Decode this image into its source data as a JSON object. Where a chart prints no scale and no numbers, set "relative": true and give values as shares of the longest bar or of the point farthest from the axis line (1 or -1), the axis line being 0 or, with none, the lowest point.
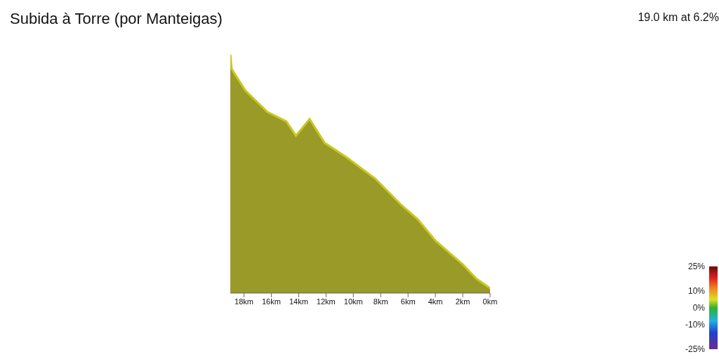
{
  "chart_data": {
    "type": "area",
    "title": "Subida à Torre (por Manteigas)",
    "subtitle": "19.0 km at 6.2%",
    "relative": true,
    "x": [
      0,
      1,
      2,
      3,
      4,
      5.3,
      6.5,
      8.4,
      10.5,
      12.1,
      13.2,
      14.2,
      14.9,
      16.3,
      17.9,
      18.9,
      19
    ],
    "series": [
      {
        "color": "#9a9a28",
        "values": [
          0.02,
          0.06,
          0.12,
          0.17,
          0.22,
          0.31,
          0.37,
          0.48,
          0.57,
          0.63,
          0.73,
          0.66,
          0.72,
          0.76,
          0.85,
          0.94,
          1
        ]
      }
    ],
    "xlim": [
      19,
      0
    ],
    "xticks": [
      {
        "value": 0,
        "label": "0km"
      },
      {
        "value": 2,
        "label": "2km"
      },
      {
        "value": 4,
        "label": "4km"
      },
      {
        "value": 6,
        "label": "6km"
      },
      {
        "value": 8,
        "label": "8km"
      },
      {
        "value": 10,
        "label": "10km"
      },
      {
        "value": 12,
        "label": "12km"
      },
      {
        "value": 14,
        "label": "14km"
      },
      {
        "value": 16,
        "label": "16km"
      },
      {
        "value": 18,
        "label": "18km"
      }
    ],
    "clim": [
      -25,
      25
    ],
    "cticks": [
      {
        "value": 25,
        "label": "25%"
      },
      {
        "value": 10,
        "label": "10%"
      },
      {
        "value": 0,
        "label": "0%"
      },
      {
        "value": -10,
        "label": "-10%"
      },
      {
        "value": -25,
        "label": "-25%"
      }
    ],
    "grid": false,
    "legend": false
  }
}
